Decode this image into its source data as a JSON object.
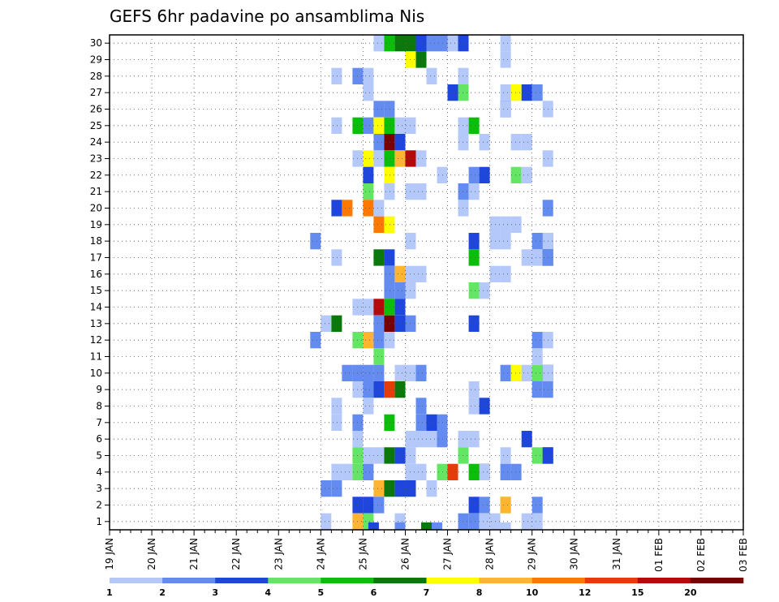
{
  "chart_data": {
    "type": "heatmap",
    "title": "GEFS 6hr padavine po ansamblima Nis",
    "y_ticks": [
      "1",
      "2",
      "3",
      "4",
      "5",
      "6",
      "7",
      "8",
      "9",
      "10",
      "11",
      "12",
      "13",
      "14",
      "15",
      "16",
      "17",
      "18",
      "19",
      "20",
      "21",
      "22",
      "23",
      "24",
      "25",
      "26",
      "27",
      "28",
      "29",
      "30"
    ],
    "x_ticks": [
      "19 JAN",
      "20 JAN",
      "21 JAN",
      "22 JAN",
      "23 JAN",
      "24 JAN",
      "25 JAN",
      "26 JAN",
      "27 JAN",
      "28 JAN",
      "29 JAN",
      "30 JAN",
      "31 JAN",
      "01 FEB",
      "02 FEB",
      "03 FEB"
    ],
    "x_steps_per_day": 4,
    "grid": true,
    "legend": {
      "placement": "bottom",
      "labels": [
        "1",
        "2",
        "3",
        "4",
        "5",
        "6",
        "7",
        "8",
        "10",
        "12",
        "15",
        "20"
      ],
      "colors": [
        "#b4c8fa",
        "#648cf0",
        "#1e46dc",
        "#64e664",
        "#0abe0a",
        "#0a780a",
        "#ffff00",
        "#ffb432",
        "#ff7800",
        "#e63c0a",
        "#b40a0a",
        "#780000"
      ]
    },
    "cells": [
      [
        30,
        14,
        0
      ],
      [
        30,
        15,
        4
      ],
      [
        30,
        16,
        5
      ],
      [
        30,
        17,
        5
      ],
      [
        30,
        18,
        2
      ],
      [
        30,
        19,
        1
      ],
      [
        30,
        20,
        1
      ],
      [
        30,
        21,
        0
      ],
      [
        30,
        22,
        2
      ],
      [
        30,
        26,
        0
      ],
      [
        29,
        17,
        6
      ],
      [
        29,
        18,
        5
      ],
      [
        29,
        26,
        0
      ],
      [
        28,
        10,
        0
      ],
      [
        28,
        12,
        1
      ],
      [
        28,
        13,
        0
      ],
      [
        28,
        19,
        0
      ],
      [
        28,
        22,
        0
      ],
      [
        27,
        13,
        0
      ],
      [
        27,
        21,
        2
      ],
      [
        27,
        22,
        3
      ],
      [
        27,
        26,
        0
      ],
      [
        27,
        27,
        6
      ],
      [
        27,
        28,
        2
      ],
      [
        27,
        29,
        1
      ],
      [
        26,
        14,
        1
      ],
      [
        26,
        15,
        1
      ],
      [
        26,
        26,
        2
      ],
      [
        26,
        26,
        0
      ],
      [
        26,
        30,
        0
      ],
      [
        25,
        10,
        0
      ],
      [
        25,
        12,
        4
      ],
      [
        25,
        13,
        1
      ],
      [
        25,
        14,
        6
      ],
      [
        25,
        15,
        4
      ],
      [
        25,
        16,
        0
      ],
      [
        25,
        17,
        0
      ],
      [
        25,
        22,
        0
      ],
      [
        25,
        23,
        4
      ],
      [
        24,
        14,
        1
      ],
      [
        24,
        15,
        11
      ],
      [
        24,
        16,
        2
      ],
      [
        24,
        22,
        0
      ],
      [
        24,
        24,
        0
      ],
      [
        24,
        27,
        0
      ],
      [
        24,
        28,
        0
      ],
      [
        23,
        12,
        0
      ],
      [
        23,
        13,
        6
      ],
      [
        23,
        14,
        0
      ],
      [
        23,
        15,
        4
      ],
      [
        23,
        16,
        7
      ],
      [
        23,
        17,
        10
      ],
      [
        23,
        18,
        0
      ],
      [
        23,
        30,
        0
      ],
      [
        22,
        13,
        2
      ],
      [
        22,
        15,
        6
      ],
      [
        22,
        20,
        0
      ],
      [
        22,
        23,
        1
      ],
      [
        22,
        24,
        2
      ],
      [
        22,
        27,
        3
      ],
      [
        22,
        28,
        0
      ],
      [
        21,
        13,
        3
      ],
      [
        21,
        15,
        0
      ],
      [
        21,
        17,
        0
      ],
      [
        21,
        18,
        0
      ],
      [
        21,
        22,
        1
      ],
      [
        21,
        23,
        0
      ],
      [
        20,
        10,
        2
      ],
      [
        20,
        11,
        8
      ],
      [
        20,
        13,
        8
      ],
      [
        20,
        14,
        0
      ],
      [
        20,
        22,
        0
      ],
      [
        20,
        30,
        1
      ],
      [
        19,
        14,
        8
      ],
      [
        19,
        15,
        6
      ],
      [
        19,
        25,
        0
      ],
      [
        19,
        26,
        0
      ],
      [
        19,
        27,
        0
      ],
      [
        18,
        8,
        1
      ],
      [
        18,
        17,
        0
      ],
      [
        18,
        23,
        2
      ],
      [
        18,
        25,
        0
      ],
      [
        18,
        26,
        0
      ],
      [
        18,
        29,
        1
      ],
      [
        18,
        30,
        2
      ],
      [
        18,
        30,
        0
      ],
      [
        17,
        10,
        0
      ],
      [
        17,
        14,
        5
      ],
      [
        17,
        15,
        2
      ],
      [
        17,
        23,
        4
      ],
      [
        17,
        28,
        0
      ],
      [
        17,
        29,
        0
      ],
      [
        17,
        30,
        5
      ],
      [
        17,
        30,
        1
      ],
      [
        16,
        15,
        1
      ],
      [
        16,
        16,
        7
      ],
      [
        16,
        17,
        0
      ],
      [
        16,
        18,
        0
      ],
      [
        16,
        25,
        0
      ],
      [
        16,
        26,
        0
      ],
      [
        15,
        15,
        1
      ],
      [
        15,
        16,
        1
      ],
      [
        15,
        17,
        0
      ],
      [
        15,
        23,
        3
      ],
      [
        15,
        24,
        0
      ],
      [
        14,
        12,
        0
      ],
      [
        14,
        13,
        0
      ],
      [
        14,
        14,
        10
      ],
      [
        14,
        15,
        4
      ],
      [
        14,
        16,
        2
      ],
      [
        13,
        9,
        0
      ],
      [
        13,
        10,
        5
      ],
      [
        13,
        14,
        1
      ],
      [
        13,
        15,
        11
      ],
      [
        13,
        16,
        2
      ],
      [
        13,
        17,
        1
      ],
      [
        13,
        23,
        2
      ],
      [
        12,
        8,
        1
      ],
      [
        12,
        12,
        3
      ],
      [
        12,
        13,
        7
      ],
      [
        12,
        14,
        1
      ],
      [
        12,
        15,
        0
      ],
      [
        12,
        29,
        1
      ],
      [
        12,
        30,
        0
      ],
      [
        11,
        14,
        3
      ],
      [
        11,
        29,
        0
      ],
      [
        10,
        11,
        1
      ],
      [
        10,
        12,
        1
      ],
      [
        10,
        13,
        1
      ],
      [
        10,
        14,
        1
      ],
      [
        10,
        16,
        0
      ],
      [
        10,
        17,
        0
      ],
      [
        10,
        18,
        1
      ],
      [
        10,
        26,
        1
      ],
      [
        10,
        27,
        6
      ],
      [
        10,
        28,
        0
      ],
      [
        10,
        29,
        3
      ],
      [
        10,
        30,
        2
      ],
      [
        10,
        30,
        0
      ],
      [
        9,
        12,
        0
      ],
      [
        9,
        13,
        1
      ],
      [
        9,
        14,
        2
      ],
      [
        9,
        15,
        9
      ],
      [
        9,
        16,
        5
      ],
      [
        9,
        23,
        0
      ],
      [
        9,
        29,
        1
      ],
      [
        9,
        30,
        1
      ],
      [
        8,
        10,
        0
      ],
      [
        8,
        13,
        0
      ],
      [
        8,
        18,
        1
      ],
      [
        8,
        23,
        0
      ],
      [
        8,
        24,
        2
      ],
      [
        7,
        10,
        0
      ],
      [
        7,
        12,
        1
      ],
      [
        7,
        15,
        4
      ],
      [
        7,
        18,
        1
      ],
      [
        7,
        19,
        2
      ],
      [
        7,
        20,
        1
      ],
      [
        6,
        12,
        0
      ],
      [
        6,
        17,
        0
      ],
      [
        6,
        18,
        0
      ],
      [
        6,
        19,
        0
      ],
      [
        6,
        20,
        1
      ],
      [
        6,
        22,
        0
      ],
      [
        6,
        23,
        0
      ],
      [
        6,
        28,
        2
      ],
      [
        5,
        12,
        3
      ],
      [
        5,
        13,
        0
      ],
      [
        5,
        14,
        0
      ],
      [
        5,
        15,
        5
      ],
      [
        5,
        16,
        2
      ],
      [
        5,
        17,
        0
      ],
      [
        5,
        22,
        3
      ],
      [
        5,
        26,
        0
      ],
      [
        5,
        29,
        3
      ],
      [
        5,
        30,
        5
      ],
      [
        5,
        30,
        3
      ],
      [
        5,
        30,
        2
      ],
      [
        4,
        10,
        0
      ],
      [
        4,
        11,
        0
      ],
      [
        4,
        12,
        3
      ],
      [
        4,
        13,
        1
      ],
      [
        4,
        17,
        0
      ],
      [
        4,
        18,
        0
      ],
      [
        4,
        20,
        3
      ],
      [
        4,
        21,
        9
      ],
      [
        4,
        23,
        4
      ],
      [
        4,
        24,
        11
      ],
      [
        4,
        24,
        0
      ],
      [
        4,
        26,
        1
      ],
      [
        4,
        27,
        1
      ],
      [
        3,
        9,
        1
      ],
      [
        3,
        10,
        1
      ],
      [
        3,
        14,
        7
      ],
      [
        3,
        15,
        5
      ],
      [
        3,
        16,
        2
      ],
      [
        3,
        17,
        2
      ],
      [
        3,
        19,
        0
      ],
      [
        2,
        12,
        2
      ],
      [
        2,
        13,
        2
      ],
      [
        2,
        14,
        1
      ],
      [
        2,
        23,
        2
      ],
      [
        2,
        24,
        1
      ],
      [
        2,
        26,
        3
      ],
      [
        2,
        26,
        7
      ],
      [
        2,
        29,
        1
      ],
      [
        1,
        9,
        0
      ],
      [
        1,
        12,
        7
      ],
      [
        1,
        13,
        3
      ],
      [
        1,
        16,
        0
      ],
      [
        1,
        22,
        1
      ],
      [
        1,
        23,
        1
      ],
      [
        1,
        24,
        0
      ],
      [
        1,
        25,
        0
      ],
      [
        1,
        28,
        0
      ],
      [
        1,
        29,
        0
      ]
    ]
  }
}
